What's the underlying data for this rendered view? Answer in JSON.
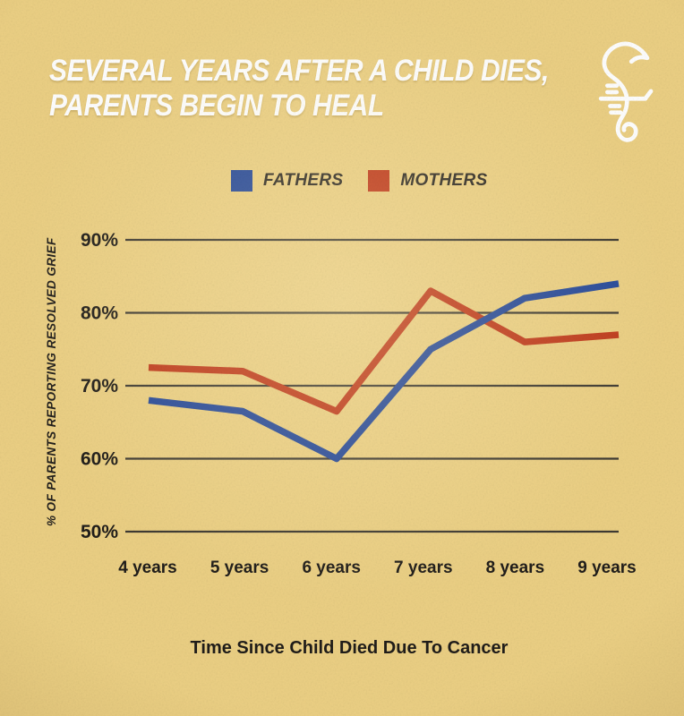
{
  "poster": {
    "title_line1": "SEVERAL YEARS AFTER A CHILD DIES,",
    "title_line2": "PARENTS BEGIN TO HEAL",
    "brand_icon": "seahorse-icon"
  },
  "colors": {
    "background": "#ecd084",
    "title_text": "#ffffff",
    "grid": "#3e3a33",
    "label_text": "#201d1a",
    "fathers_blue": "#26499b",
    "mothers_red": "#c03a1c"
  },
  "chart_data": {
    "type": "line",
    "title": "Several years after a child dies, parents begin to heal",
    "categories": [
      "4 years",
      "5 years",
      "6 years",
      "7 years",
      "8 years",
      "9 years"
    ],
    "series": [
      {
        "name": "FATHERS",
        "color": "#26499b",
        "values": [
          68,
          66.5,
          60,
          75,
          82,
          84
        ]
      },
      {
        "name": "MOTHERS",
        "color": "#c03a1c",
        "values": [
          72.5,
          72,
          66.5,
          83,
          76,
          77
        ]
      }
    ],
    "xlabel": "Time Since Child Died Due To Cancer",
    "ylabel": "% OF PARENTS REPORTING RESOLVED GRIEF",
    "yticks": [
      90,
      80,
      70,
      60,
      50
    ],
    "ytick_suffix": "%",
    "ylim": [
      50,
      90
    ],
    "grid": "horizontal",
    "legend_position": "top"
  }
}
